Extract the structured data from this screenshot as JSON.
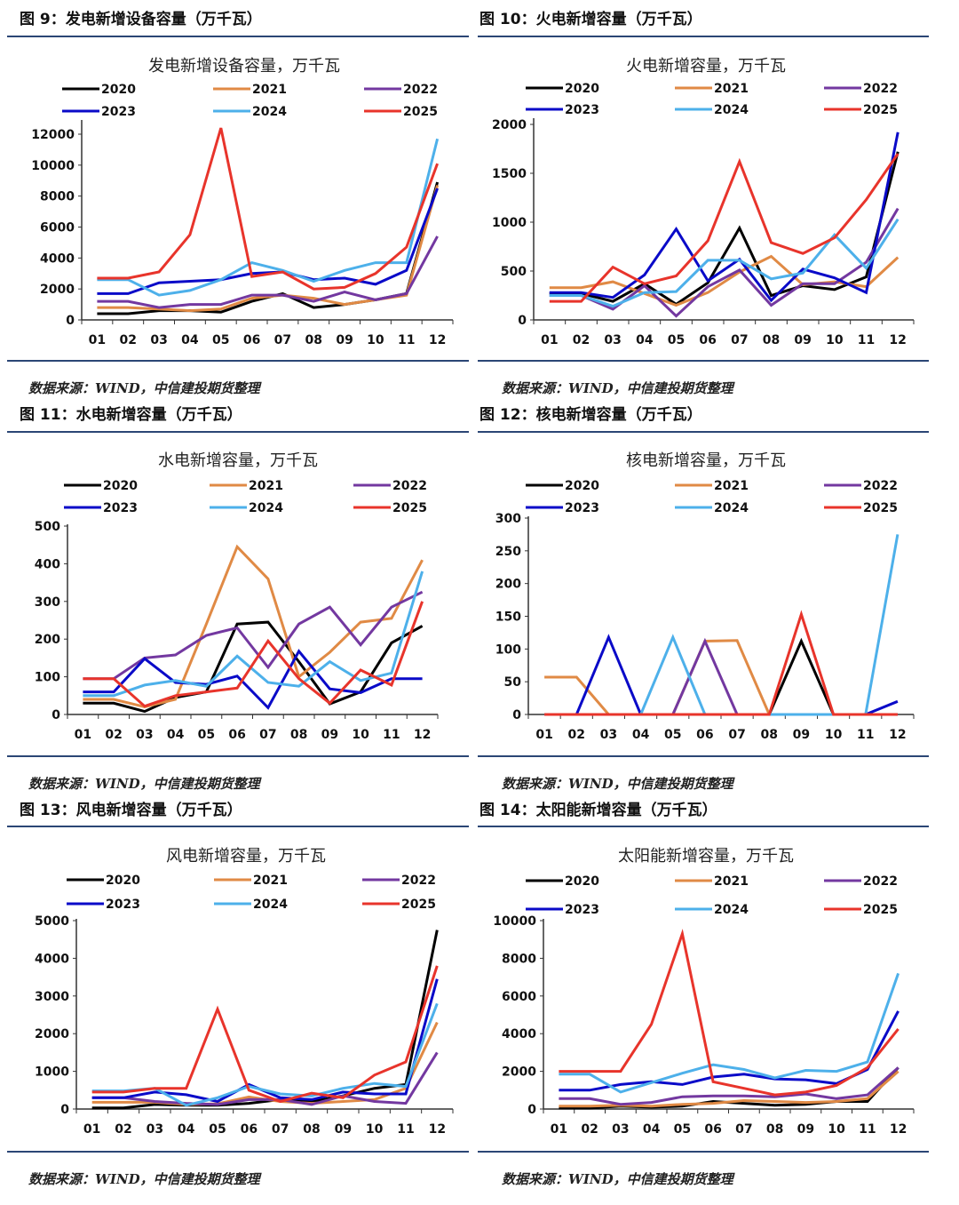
{
  "colors": {
    "rule": "#2b4675",
    "2020": "#000000",
    "2021": "#e08a45",
    "2022": "#7338a0",
    "2023": "#0a0ac8",
    "2024": "#4db0ea",
    "2025": "#e8342b"
  },
  "panels": [
    {
      "heading": "图 9：发电新增设备容量（万千瓦）",
      "source": "数据来源：WIND，中信建投期货整理"
    },
    {
      "heading": "图 10：火电新增容量（万千瓦）",
      "source": "数据来源：WIND，中信建投期货整理"
    },
    {
      "heading": "图 11：水电新增容量（万千瓦）",
      "source": "数据来源：WIND，中信建投期货整理"
    },
    {
      "heading": "图 12：核电新增容量（万千瓦）",
      "source": "数据来源：WIND，中信建投期货整理"
    },
    {
      "heading": "图 13：风电新增容量（万千瓦）",
      "source": "数据来源：WIND，中信建投期货整理"
    },
    {
      "heading": "图 14：太阳能新增容量（万千瓦）",
      "source": "数据来源：WIND，中信建投期货整理"
    }
  ],
  "chart_data": [
    {
      "type": "line",
      "title": "发电新增设备容量，万千瓦",
      "legend": "top",
      "categories": [
        "01",
        "02",
        "03",
        "04",
        "05",
        "06",
        "07",
        "08",
        "09",
        "10",
        "11",
        "12"
      ],
      "ylim": [
        0,
        12000
      ],
      "yticks": [
        "0",
        "2000",
        "4000",
        "6000",
        "8000",
        "10000",
        "12000"
      ],
      "series": [
        {
          "name": "2020",
          "values": [
            400,
            400,
            600,
            600,
            500,
            1200,
            1700,
            800,
            1000,
            1300,
            1700,
            8900
          ]
        },
        {
          "name": "2021",
          "values": [
            800,
            800,
            700,
            600,
            700,
            1400,
            1600,
            1400,
            1000,
            1300,
            1600,
            8700
          ]
        },
        {
          "name": "2022",
          "values": [
            1200,
            1200,
            800,
            1000,
            1000,
            1600,
            1600,
            1200,
            1800,
            1300,
            1700,
            5400
          ]
        },
        {
          "name": "2023",
          "values": [
            1700,
            1700,
            2400,
            2500,
            2600,
            3000,
            3100,
            2600,
            2700,
            2300,
            3200,
            8500
          ]
        },
        {
          "name": "2024",
          "values": [
            2600,
            2600,
            1600,
            1900,
            2600,
            3700,
            3200,
            2500,
            3200,
            3700,
            3700,
            11700
          ]
        },
        {
          "name": "2025",
          "values": [
            2700,
            2700,
            3100,
            5500,
            12400,
            2800,
            3100,
            2000,
            2100,
            3000,
            4700,
            10100
          ]
        }
      ]
    },
    {
      "type": "line",
      "title": "火电新增容量，万千瓦",
      "legend": "top",
      "categories": [
        "01",
        "02",
        "03",
        "04",
        "05",
        "06",
        "07",
        "08",
        "09",
        "10",
        "11",
        "12"
      ],
      "ylim": [
        0,
        2000
      ],
      "yticks": [
        "0",
        "500",
        "1000",
        "1500",
        "2000"
      ],
      "series": [
        {
          "name": "2020",
          "values": [
            270,
            270,
            190,
            370,
            160,
            380,
            940,
            250,
            350,
            310,
            440,
            1720
          ]
        },
        {
          "name": "2021",
          "values": [
            330,
            330,
            390,
            270,
            150,
            280,
            490,
            650,
            360,
            390,
            340,
            640
          ]
        },
        {
          "name": "2022",
          "values": [
            250,
            250,
            110,
            350,
            40,
            340,
            510,
            150,
            370,
            370,
            590,
            1140
          ]
        },
        {
          "name": "2023",
          "values": [
            280,
            280,
            230,
            460,
            930,
            400,
            620,
            200,
            520,
            430,
            280,
            1920
          ]
        },
        {
          "name": "2024",
          "values": [
            250,
            250,
            140,
            280,
            290,
            610,
            610,
            420,
            480,
            870,
            530,
            1030
          ]
        },
        {
          "name": "2025",
          "values": [
            190,
            190,
            540,
            370,
            450,
            810,
            1620,
            790,
            680,
            840,
            1230,
            1700
          ]
        }
      ]
    },
    {
      "type": "line",
      "title": "水电新增容量，万千瓦",
      "legend": "top",
      "categories": [
        "01",
        "02",
        "03",
        "04",
        "05",
        "06",
        "07",
        "08",
        "09",
        "10",
        "11",
        "12"
      ],
      "ylim": [
        0,
        500
      ],
      "yticks": [
        "0",
        "100",
        "200",
        "300",
        "400",
        "500"
      ],
      "series": [
        {
          "name": "2020",
          "values": [
            30,
            30,
            8,
            45,
            60,
            240,
            245,
            140,
            28,
            60,
            190,
            235
          ]
        },
        {
          "name": "2021",
          "values": [
            40,
            40,
            20,
            40,
            240,
            445,
            360,
            100,
            165,
            245,
            255,
            410
          ]
        },
        {
          "name": "2022",
          "values": [
            95,
            95,
            150,
            158,
            210,
            230,
            125,
            240,
            285,
            185,
            285,
            325
          ]
        },
        {
          "name": "2023",
          "values": [
            60,
            60,
            148,
            85,
            80,
            102,
            18,
            168,
            68,
            58,
            95,
            95
          ]
        },
        {
          "name": "2024",
          "values": [
            50,
            50,
            78,
            90,
            75,
            155,
            85,
            75,
            140,
            90,
            110,
            380
          ]
        },
        {
          "name": "2025",
          "values": [
            95,
            95,
            22,
            50,
            60,
            70,
            195,
            95,
            30,
            118,
            78,
            300
          ]
        }
      ]
    },
    {
      "type": "line",
      "title": "核电新增容量，万千瓦",
      "legend": "top",
      "categories": [
        "01",
        "02",
        "03",
        "04",
        "05",
        "06",
        "07",
        "08",
        "09",
        "10",
        "11",
        "12"
      ],
      "ylim": [
        0,
        300
      ],
      "yticks": [
        "0",
        "50",
        "100",
        "150",
        "200",
        "250",
        "300"
      ],
      "series": [
        {
          "name": "2020",
          "values": [
            0,
            0,
            0,
            0,
            0,
            0,
            0,
            0,
            112,
            0,
            0,
            0
          ]
        },
        {
          "name": "2021",
          "values": [
            57,
            57,
            0,
            0,
            0,
            112,
            113,
            0,
            0,
            0,
            0,
            0
          ]
        },
        {
          "name": "2022",
          "values": [
            0,
            0,
            0,
            0,
            0,
            112,
            0,
            0,
            0,
            0,
            0,
            0
          ]
        },
        {
          "name": "2023",
          "values": [
            0,
            0,
            118,
            0,
            0,
            0,
            0,
            0,
            0,
            0,
            0,
            20
          ]
        },
        {
          "name": "2024",
          "values": [
            0,
            0,
            0,
            0,
            118,
            0,
            0,
            0,
            0,
            0,
            0,
            275
          ]
        },
        {
          "name": "2025",
          "values": [
            0,
            0,
            0,
            0,
            0,
            0,
            0,
            0,
            153,
            0,
            0,
            0
          ]
        }
      ]
    },
    {
      "type": "line",
      "title": "风电新增容量，万千瓦",
      "legend": "top",
      "categories": [
        "01",
        "02",
        "03",
        "04",
        "05",
        "06",
        "07",
        "08",
        "09",
        "10",
        "11",
        "12"
      ],
      "ylim": [
        0,
        5000
      ],
      "yticks": [
        "0",
        "1000",
        "2000",
        "3000",
        "4000",
        "5000"
      ],
      "series": [
        {
          "name": "2020",
          "values": [
            30,
            30,
            120,
            100,
            100,
            150,
            250,
            200,
            350,
            550,
            650,
            4750
          ]
        },
        {
          "name": "2021",
          "values": [
            180,
            180,
            180,
            120,
            140,
            320,
            200,
            150,
            200,
            250,
            550,
            2300
          ]
        },
        {
          "name": "2022",
          "values": [
            300,
            300,
            200,
            150,
            120,
            250,
            250,
            120,
            350,
            200,
            150,
            1500
          ]
        },
        {
          "name": "2023",
          "values": [
            300,
            300,
            450,
            380,
            200,
            650,
            300,
            250,
            450,
            400,
            400,
            3450
          ]
        },
        {
          "name": "2024",
          "values": [
            480,
            480,
            550,
            100,
            300,
            600,
            400,
            350,
            550,
            680,
            600,
            2800
          ]
        },
        {
          "name": "2025",
          "values": [
            450,
            450,
            550,
            550,
            2650,
            500,
            200,
            420,
            300,
            900,
            1250,
            3800
          ]
        }
      ]
    },
    {
      "type": "line",
      "title": "太阳能新增容量，万千瓦",
      "legend": "top",
      "categories": [
        "01",
        "02",
        "03",
        "04",
        "05",
        "06",
        "07",
        "08",
        "09",
        "10",
        "11",
        "12"
      ],
      "ylim": [
        0,
        10000
      ],
      "yticks": [
        "0",
        "2000",
        "4000",
        "6000",
        "8000",
        "10000"
      ],
      "series": [
        {
          "name": "2020",
          "values": [
            50,
            50,
            150,
            100,
            150,
            400,
            300,
            200,
            250,
            400,
            400,
            2200
          ]
        },
        {
          "name": "2021",
          "values": [
            150,
            150,
            200,
            150,
            250,
            300,
            450,
            400,
            350,
            400,
            550,
            2000
          ]
        },
        {
          "name": "2022",
          "values": [
            550,
            550,
            250,
            350,
            650,
            700,
            700,
            650,
            800,
            550,
            750,
            2200
          ]
        },
        {
          "name": "2023",
          "values": [
            1000,
            1000,
            1300,
            1450,
            1300,
            1700,
            1850,
            1600,
            1550,
            1350,
            2100,
            5200
          ]
        },
        {
          "name": "2024",
          "values": [
            1850,
            1850,
            900,
            1400,
            1900,
            2350,
            2100,
            1650,
            2050,
            2000,
            2500,
            7200
          ]
        },
        {
          "name": "2025",
          "values": [
            2000,
            2000,
            2000,
            4500,
            9300,
            1450,
            1100,
            750,
            900,
            1250,
            2200,
            4250
          ]
        }
      ]
    }
  ]
}
